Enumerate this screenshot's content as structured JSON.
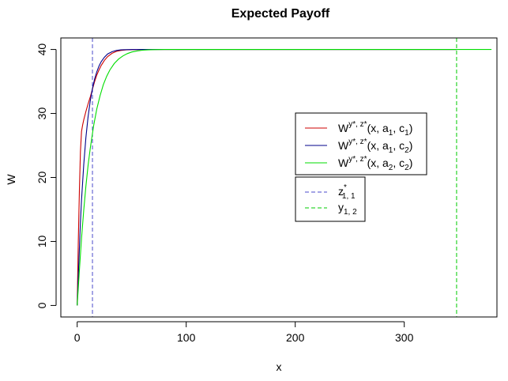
{
  "chart_data": {
    "type": "line",
    "title": "Expected Payoff",
    "xlabel": "x",
    "ylabel": "W",
    "xlim": [
      -15,
      385
    ],
    "ylim": [
      -1.8,
      41.8
    ],
    "x_ticks": [
      0,
      100,
      200,
      300
    ],
    "y_ticks": [
      0,
      10,
      20,
      30,
      40
    ],
    "grid": false,
    "series": [
      {
        "name_parts": [
          "W",
          "y*, z*",
          "(x, a",
          "1",
          ", c",
          "1",
          ")"
        ],
        "color": "#cc0000",
        "x": [
          0,
          1,
          2,
          3,
          4,
          5,
          6,
          8,
          10,
          12,
          14,
          16,
          18,
          20,
          22,
          25,
          28,
          32,
          36,
          40,
          45,
          50,
          60,
          80,
          120,
          200,
          300,
          348
        ],
        "y": [
          0,
          10,
          18,
          24,
          27.2,
          28.2,
          29,
          30.3,
          31.5,
          32.6,
          33.8,
          35,
          36,
          36.8,
          37.5,
          38.3,
          38.9,
          39.4,
          39.7,
          39.85,
          39.93,
          39.97,
          40,
          40,
          40,
          40,
          40,
          40
        ]
      },
      {
        "name_parts": [
          "W",
          "y*, z*",
          "(x, a",
          "1",
          ", c",
          "2",
          ")"
        ],
        "color": "#00008b",
        "x": [
          0,
          1,
          2,
          3,
          4,
          6,
          8,
          10,
          12,
          14,
          16,
          18,
          20,
          22,
          25,
          28,
          32,
          36,
          40,
          45,
          50,
          60,
          80,
          120,
          200,
          300,
          348
        ],
        "y": [
          0,
          4.5,
          9,
          13,
          16.5,
          22,
          26.2,
          29.5,
          32,
          33.9,
          35.4,
          36.5,
          37.4,
          38.1,
          38.8,
          39.3,
          39.65,
          39.85,
          39.93,
          39.97,
          39.99,
          40,
          40,
          40,
          40,
          40,
          40
        ]
      },
      {
        "name_parts": [
          "W",
          "y*, z*",
          "(x, a",
          "2",
          ", c",
          "2",
          ")"
        ],
        "color": "#00dd00",
        "x": [
          0,
          2,
          4,
          6,
          8,
          10,
          12,
          15,
          18,
          21,
          24,
          27,
          30,
          34,
          38,
          42,
          46,
          50,
          55,
          60,
          65,
          70,
          75,
          80,
          100,
          150,
          200,
          300,
          380
        ],
        "y": [
          0,
          5.5,
          10.5,
          14.9,
          18.6,
          21.9,
          24.6,
          28,
          30.7,
          32.8,
          34.5,
          35.8,
          36.8,
          37.8,
          38.5,
          39,
          39.35,
          39.6,
          39.78,
          39.88,
          39.94,
          39.97,
          39.99,
          40,
          40,
          40,
          40,
          40,
          40
        ]
      }
    ],
    "vlines": [
      {
        "label_main": "z",
        "label_sup": "*",
        "label_sub": "1, 1",
        "x": 14,
        "color": "#4a4acc"
      },
      {
        "label_main": "y",
        "label_sup": "",
        "label_sub": "1, 2",
        "x": 348,
        "color": "#00cc00"
      }
    ]
  }
}
